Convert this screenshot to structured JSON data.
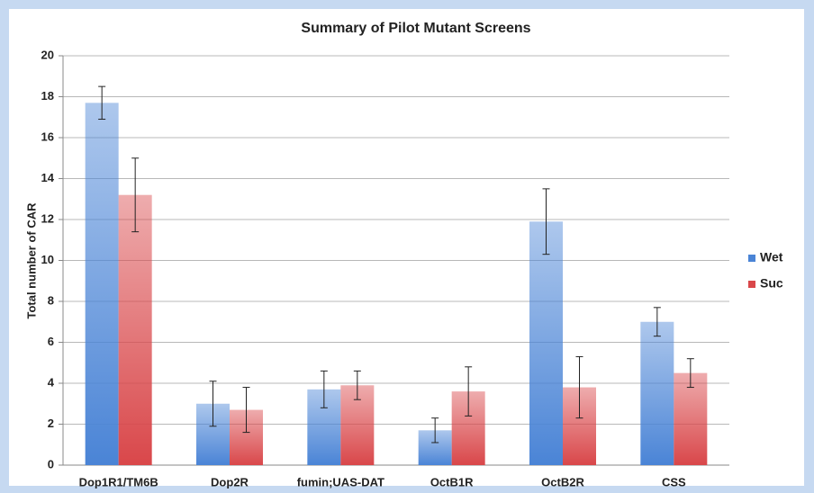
{
  "chart_data": {
    "type": "bar",
    "title": "Summary of Pilot Mutant Screens",
    "y_label": "Total number of CAR",
    "categories": [
      "Dop1R1/TM6B",
      "Dop2R",
      "fumin;UAS-DAT",
      "OctB1R",
      "OctB2R",
      "CSS"
    ],
    "series": [
      {
        "name": "Wet",
        "color": "#4a84d6",
        "values": [
          17.7,
          3.0,
          3.7,
          1.7,
          11.9,
          7.0
        ],
        "errors": [
          0.8,
          1.1,
          0.9,
          0.6,
          1.6,
          0.7
        ]
      },
      {
        "name": "Suc",
        "color": "#d9474a",
        "values": [
          13.2,
          2.7,
          3.9,
          3.6,
          3.8,
          4.5
        ],
        "errors": [
          1.8,
          1.1,
          0.7,
          1.2,
          1.5,
          0.7
        ]
      }
    ],
    "ylim": [
      0,
      20
    ],
    "yticks": [
      0,
      2,
      4,
      6,
      8,
      10,
      12,
      14,
      16,
      18,
      20
    ],
    "grid": true,
    "legend": "right"
  }
}
